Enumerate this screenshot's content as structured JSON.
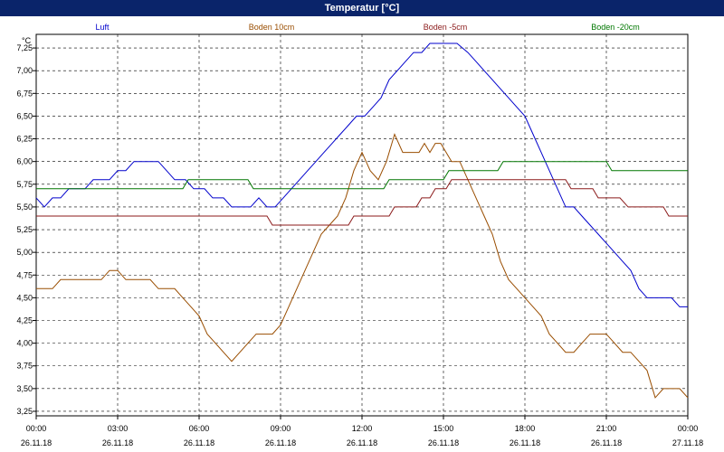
{
  "window": {
    "title": "Temperatur [°C]"
  },
  "colors": {
    "title_bg": "#0a246a",
    "luft": "#0000cc",
    "boden10": "#994d00",
    "bodenm5": "#8b1a1a",
    "bodenm20": "#007700"
  },
  "chart_data": {
    "type": "line",
    "title": "Temperatur [°C]",
    "ylabel": "°C",
    "xlabel": "",
    "ylim": [
      3.2,
      7.4
    ],
    "xlim": [
      0,
      24
    ],
    "grid": true,
    "legend": "top",
    "y_ticks": [
      "3,25",
      "3,50",
      "3,75",
      "4,00",
      "4,25",
      "4,50",
      "4,75",
      "5,00",
      "5,25",
      "5,50",
      "5,75",
      "6,00",
      "6,25",
      "6,50",
      "6,75",
      "7,00",
      "7,25"
    ],
    "x_ticks": [
      {
        "time": "00:00",
        "date": "26.11.18"
      },
      {
        "time": "03:00",
        "date": "26.11.18"
      },
      {
        "time": "06:00",
        "date": "26.11.18"
      },
      {
        "time": "09:00",
        "date": "26.11.18"
      },
      {
        "time": "12:00",
        "date": "26.11.18"
      },
      {
        "time": "15:00",
        "date": "26.11.18"
      },
      {
        "time": "18:00",
        "date": "26.11.18"
      },
      {
        "time": "21:00",
        "date": "26.11.18"
      },
      {
        "time": "00:00",
        "date": "27.11.18"
      }
    ],
    "series": [
      {
        "name": "Luft",
        "color": "#0000cc",
        "points": [
          [
            0,
            5.6
          ],
          [
            0.3,
            5.5
          ],
          [
            0.6,
            5.6
          ],
          [
            0.9,
            5.6
          ],
          [
            1.2,
            5.7
          ],
          [
            1.5,
            5.7
          ],
          [
            1.8,
            5.7
          ],
          [
            2.1,
            5.8
          ],
          [
            2.4,
            5.8
          ],
          [
            2.7,
            5.8
          ],
          [
            3.0,
            5.9
          ],
          [
            3.3,
            5.9
          ],
          [
            3.6,
            6.0
          ],
          [
            4.0,
            6.0
          ],
          [
            4.5,
            6.0
          ],
          [
            4.8,
            5.9
          ],
          [
            5.1,
            5.8
          ],
          [
            5.5,
            5.8
          ],
          [
            5.8,
            5.7
          ],
          [
            6.2,
            5.7
          ],
          [
            6.5,
            5.6
          ],
          [
            6.9,
            5.6
          ],
          [
            7.2,
            5.5
          ],
          [
            7.6,
            5.5
          ],
          [
            7.9,
            5.5
          ],
          [
            8.2,
            5.6
          ],
          [
            8.5,
            5.5
          ],
          [
            8.8,
            5.5
          ],
          [
            9.1,
            5.6
          ],
          [
            9.4,
            5.7
          ],
          [
            9.7,
            5.8
          ],
          [
            10.0,
            5.9
          ],
          [
            10.3,
            6.0
          ],
          [
            10.6,
            6.1
          ],
          [
            10.9,
            6.2
          ],
          [
            11.2,
            6.3
          ],
          [
            11.5,
            6.4
          ],
          [
            11.8,
            6.5
          ],
          [
            12.1,
            6.5
          ],
          [
            12.4,
            6.6
          ],
          [
            12.7,
            6.7
          ],
          [
            13.0,
            6.9
          ],
          [
            13.3,
            7.0
          ],
          [
            13.6,
            7.1
          ],
          [
            13.9,
            7.2
          ],
          [
            14.2,
            7.2
          ],
          [
            14.5,
            7.3
          ],
          [
            15.0,
            7.3
          ],
          [
            15.5,
            7.3
          ],
          [
            15.9,
            7.2
          ],
          [
            16.2,
            7.1
          ],
          [
            16.5,
            7.0
          ],
          [
            16.8,
            6.9
          ],
          [
            17.1,
            6.8
          ],
          [
            17.4,
            6.7
          ],
          [
            17.7,
            6.6
          ],
          [
            18.0,
            6.5
          ],
          [
            18.3,
            6.3
          ],
          [
            18.6,
            6.1
          ],
          [
            18.9,
            5.9
          ],
          [
            19.2,
            5.7
          ],
          [
            19.5,
            5.5
          ],
          [
            19.8,
            5.5
          ],
          [
            20.1,
            5.4
          ],
          [
            20.4,
            5.3
          ],
          [
            20.7,
            5.2
          ],
          [
            21.0,
            5.1
          ],
          [
            21.3,
            5.0
          ],
          [
            21.6,
            4.9
          ],
          [
            21.9,
            4.8
          ],
          [
            22.2,
            4.6
          ],
          [
            22.5,
            4.5
          ],
          [
            22.8,
            4.5
          ],
          [
            23.1,
            4.5
          ],
          [
            23.4,
            4.5
          ],
          [
            23.7,
            4.4
          ],
          [
            24.0,
            4.4
          ]
        ]
      },
      {
        "name": "Boden 10cm",
        "color": "#994d00",
        "points": [
          [
            0,
            4.6
          ],
          [
            0.3,
            4.6
          ],
          [
            0.6,
            4.6
          ],
          [
            0.9,
            4.7
          ],
          [
            1.5,
            4.7
          ],
          [
            2.1,
            4.7
          ],
          [
            2.4,
            4.7
          ],
          [
            2.7,
            4.8
          ],
          [
            3.0,
            4.8
          ],
          [
            3.3,
            4.7
          ],
          [
            3.6,
            4.7
          ],
          [
            4.2,
            4.7
          ],
          [
            4.5,
            4.6
          ],
          [
            5.1,
            4.6
          ],
          [
            5.4,
            4.5
          ],
          [
            5.7,
            4.4
          ],
          [
            6.0,
            4.3
          ],
          [
            6.3,
            4.1
          ],
          [
            6.6,
            4.0
          ],
          [
            6.9,
            3.9
          ],
          [
            7.2,
            3.8
          ],
          [
            7.5,
            3.9
          ],
          [
            7.8,
            4.0
          ],
          [
            8.1,
            4.1
          ],
          [
            8.7,
            4.1
          ],
          [
            9.0,
            4.2
          ],
          [
            9.3,
            4.4
          ],
          [
            9.6,
            4.6
          ],
          [
            9.9,
            4.8
          ],
          [
            10.2,
            5.0
          ],
          [
            10.5,
            5.2
          ],
          [
            10.8,
            5.3
          ],
          [
            11.1,
            5.4
          ],
          [
            11.4,
            5.6
          ],
          [
            11.7,
            5.9
          ],
          [
            12.0,
            6.1
          ],
          [
            12.3,
            5.9
          ],
          [
            12.6,
            5.8
          ],
          [
            12.9,
            6.0
          ],
          [
            13.2,
            6.3
          ],
          [
            13.5,
            6.1
          ],
          [
            13.8,
            6.1
          ],
          [
            14.1,
            6.1
          ],
          [
            14.3,
            6.2
          ],
          [
            14.5,
            6.1
          ],
          [
            14.7,
            6.2
          ],
          [
            14.9,
            6.2
          ],
          [
            15.1,
            6.1
          ],
          [
            15.3,
            6.0
          ],
          [
            15.6,
            6.0
          ],
          [
            15.9,
            5.8
          ],
          [
            16.2,
            5.6
          ],
          [
            16.5,
            5.4
          ],
          [
            16.8,
            5.2
          ],
          [
            17.1,
            4.9
          ],
          [
            17.4,
            4.7
          ],
          [
            17.7,
            4.6
          ],
          [
            18.0,
            4.5
          ],
          [
            18.3,
            4.4
          ],
          [
            18.6,
            4.3
          ],
          [
            18.9,
            4.1
          ],
          [
            19.2,
            4.0
          ],
          [
            19.5,
            3.9
          ],
          [
            19.8,
            3.9
          ],
          [
            20.1,
            4.0
          ],
          [
            20.4,
            4.1
          ],
          [
            21.0,
            4.1
          ],
          [
            21.3,
            4.0
          ],
          [
            21.6,
            3.9
          ],
          [
            21.9,
            3.9
          ],
          [
            22.2,
            3.8
          ],
          [
            22.5,
            3.7
          ],
          [
            22.8,
            3.4
          ],
          [
            23.1,
            3.5
          ],
          [
            23.7,
            3.5
          ],
          [
            24.0,
            3.4
          ]
        ]
      },
      {
        "name": "Boden -5cm",
        "color": "#8b1a1a",
        "points": [
          [
            0,
            5.4
          ],
          [
            6.0,
            5.4
          ],
          [
            8.5,
            5.4
          ],
          [
            8.7,
            5.3
          ],
          [
            11.5,
            5.3
          ],
          [
            11.7,
            5.4
          ],
          [
            13.0,
            5.4
          ],
          [
            13.2,
            5.5
          ],
          [
            14.0,
            5.5
          ],
          [
            14.2,
            5.6
          ],
          [
            14.5,
            5.6
          ],
          [
            14.7,
            5.7
          ],
          [
            15.1,
            5.7
          ],
          [
            15.3,
            5.8
          ],
          [
            16.8,
            5.8
          ],
          [
            17.0,
            5.8
          ],
          [
            19.5,
            5.8
          ],
          [
            19.7,
            5.7
          ],
          [
            20.5,
            5.7
          ],
          [
            20.7,
            5.6
          ],
          [
            21.5,
            5.6
          ],
          [
            21.8,
            5.5
          ],
          [
            23.1,
            5.5
          ],
          [
            23.3,
            5.4
          ],
          [
            24.0,
            5.4
          ]
        ]
      },
      {
        "name": "Boden -20cm",
        "color": "#007700",
        "points": [
          [
            0,
            5.7
          ],
          [
            5.4,
            5.7
          ],
          [
            5.6,
            5.8
          ],
          [
            7.8,
            5.8
          ],
          [
            8.0,
            5.7
          ],
          [
            12.8,
            5.7
          ],
          [
            13.0,
            5.8
          ],
          [
            15.0,
            5.8
          ],
          [
            15.2,
            5.9
          ],
          [
            17.0,
            5.9
          ],
          [
            17.2,
            6.0
          ],
          [
            21.0,
            6.0
          ],
          [
            21.2,
            5.9
          ],
          [
            24.0,
            5.9
          ]
        ]
      }
    ]
  }
}
